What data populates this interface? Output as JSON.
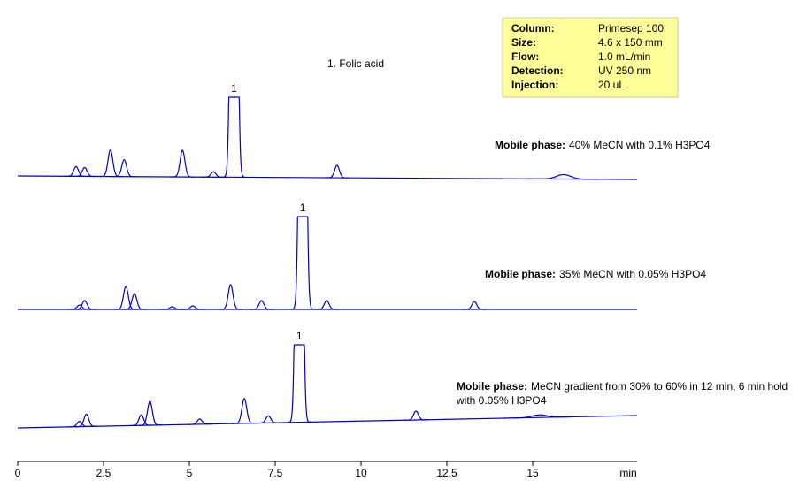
{
  "chart_data": {
    "type": "chromatogram",
    "compound_list": [
      "1. Folic acid"
    ],
    "info": {
      "rows": [
        [
          "Column:",
          "Primesep 100"
        ],
        [
          "Size:",
          "4.6 x 150 mm"
        ],
        [
          "Flow:",
          "1.0 mL/min"
        ],
        [
          "Detection:",
          "UV 250 nm"
        ],
        [
          "Injection:",
          "20 uL"
        ]
      ]
    },
    "xlim": [
      0,
      18.04
    ],
    "xticks": [
      0,
      2.5,
      5,
      7.5,
      10,
      12.5,
      15
    ],
    "x_label": "min",
    "series": [
      {
        "title": "Mobile phase:",
        "name": "40% MeCN with 0.1% H3PO4",
        "color": "#0000cc",
        "x": [
          1.7,
          1.95,
          2.7,
          3.1,
          4.8,
          5.7,
          6.3,
          9.3,
          15.9
        ],
        "values": [
          11,
          10,
          30,
          19,
          30,
          6,
          1000,
          14,
          5
        ],
        "peak_label": {
          "x": 6.3,
          "text": "1"
        }
      },
      {
        "title": "Mobile phase:",
        "name": "35% MeCN with 0.05% H3PO4",
        "color": "#0000cc",
        "x": [
          1.8,
          1.95,
          3.15,
          3.4,
          4.5,
          5.1,
          6.2,
          7.1,
          8.3,
          9.0,
          13.3
        ],
        "values": [
          5,
          10,
          26,
          18,
          3,
          4,
          28,
          10,
          1000,
          10,
          9
        ],
        "peak_label": {
          "x": 8.3,
          "text": "1"
        }
      },
      {
        "title": "Mobile phase:",
        "name": "MeCN gradient from 30% to 60% in 12 min, 6 min hold with 0.05% H3PO4",
        "color": "#0000cc",
        "x": [
          1.8,
          2.0,
          3.6,
          3.85,
          5.3,
          6.6,
          7.3,
          8.2,
          11.6,
          15.2
        ],
        "values": [
          6,
          14,
          12,
          27,
          6,
          28,
          8,
          1000,
          10,
          3
        ],
        "peak_label": {
          "x": 8.2,
          "text": "1"
        }
      }
    ]
  }
}
